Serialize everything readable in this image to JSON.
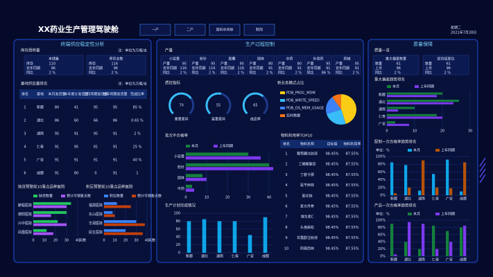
{
  "header": {
    "title": "XX药业生产管理驾驶舱",
    "tabs": [
      "一产",
      "二产",
      "原料中间体",
      "制剂"
    ],
    "weekday": "星期二",
    "date": "2021年7月28日"
  },
  "left": {
    "title": "终端供应稳定性分析",
    "inventory": {
      "label": "库存周转量",
      "note": "注：单位为万瓶/支",
      "blocks": [
        {
          "title": "本储备",
          "rows": [
            [
              "库存",
              "110"
            ],
            [
              "去年同期",
              "96"
            ],
            [
              "同比",
              "2 %"
            ]
          ]
        },
        {
          "title": "库存总数",
          "rows": [
            [
              "库存",
              "116"
            ],
            [
              "去年同期",
              "96"
            ],
            [
              "同比",
              "2 %"
            ]
          ]
        }
      ]
    },
    "ranking": {
      "label": "基地供应量排名",
      "note": "注：单位为万瓶/支",
      "columns": [
        "排名",
        "基地",
        "本月发货量",
        "本年累计发货量",
        "上月同期发货量",
        "去年同期发货量",
        "完成比率"
      ],
      "rows": [
        [
          "1",
          "新都",
          "80",
          "41",
          "95",
          "95",
          "85 %"
        ],
        [
          "2",
          "湖北",
          "86",
          "60",
          "66",
          "86",
          "0.65 %"
        ],
        [
          "3",
          "湖南",
          "95",
          "91",
          "95",
          "91",
          "2 %"
        ],
        [
          "4",
          "仁寿",
          "91",
          "95",
          "81",
          "91",
          "25 %"
        ],
        [
          "5",
          "广安",
          "91",
          "91",
          "91",
          "91",
          "40 %"
        ],
        [
          "6",
          "成都",
          "91",
          "80",
          "0",
          "91",
          "1"
        ]
      ],
      "value_colors": [
        "#ef4444",
        "#ef4444",
        "#22c55e",
        "#ef4444",
        "#22c55e",
        "#e5e7eb"
      ]
    }
  },
  "middle": {
    "title": "生产过程控制",
    "output": {
      "label": "产量",
      "blocks": [
        {
          "title": "小容量",
          "rows": [
            [
              "产量",
              "95"
            ],
            [
              "去年同期",
              "116"
            ],
            [
              "同比",
              "2 %"
            ]
          ]
        },
        {
          "title": "粉针",
          "rows": [
            [
              "产量",
              "95"
            ],
            [
              "去年同期",
              "116"
            ],
            [
              "同比",
              "2 %"
            ]
          ]
        },
        {
          "title": "胶囊",
          "rows": [
            [
              "产量",
              "95"
            ],
            [
              "去年同期",
              "116"
            ],
            [
              "同比",
              "2 %"
            ]
          ]
        },
        {
          "title": "固体",
          "rows": [
            [
              "产量",
              "80"
            ],
            [
              "去年同期",
              "91"
            ],
            [
              "同比",
              "2 %"
            ]
          ]
        },
        {
          "title": "中药",
          "rows": [
            [
              "产量",
              "80"
            ],
            [
              "去年同期",
              "91"
            ],
            [
              "同比",
              "2 %"
            ]
          ]
        },
        {
          "title": "外用药",
          "rows": [
            [
              "产量",
              "95"
            ],
            [
              "去年同期",
              "91"
            ],
            [
              "同比",
              "86 %"
            ]
          ]
        },
        {
          "title": "药械",
          "rows": [
            [
              "产量",
              "95"
            ],
            [
              "去年同期",
              "91"
            ],
            [
              "同比",
              "2 %"
            ]
          ]
        }
      ]
    },
    "top10": {
      "label": "物料利用率TOP10",
      "columns": [
        "排名",
        "物料名称",
        "目标值",
        "物料利用率"
      ],
      "rows": [
        [
          "1",
          "葡萄糖注射液",
          "98.45%",
          "87.55%"
        ],
        [
          "2",
          "三磷酸腺苷",
          "98.45%",
          "87.55%"
        ],
        [
          "3",
          "丁胺卡那",
          "98.45%",
          "87.55%"
        ],
        [
          "4",
          "氨苄西林",
          "98.45%",
          "87.55%"
        ],
        [
          "5",
          "氯化钠",
          "98.45%",
          "87.55%"
        ],
        [
          "6",
          "复方丹参",
          "98.45%",
          "87.55%"
        ],
        [
          "7",
          "维生素C",
          "98.45%",
          "87.55%"
        ],
        [
          "8",
          "头孢曲松",
          "98.45%",
          "87.55%"
        ],
        [
          "9",
          "甘露醇注射液",
          "98.45%",
          "87.55%"
        ],
        [
          "10",
          "阿莫西林",
          "98.45%",
          "87.55%"
        ]
      ]
    }
  },
  "right": {
    "title": "质量保障",
    "overview": {
      "label": "质量一览",
      "blocks": [
        {
          "title": "重大偏差数量",
          "rows": [
            [
              "数量",
              "61"
            ],
            [
              "上月",
              "96"
            ],
            [
              "同比",
              "2 %"
            ]
          ]
        },
        {
          "title": "投诉结案比",
          "rows": [
            [
              "数量",
              "61"
            ],
            [
              "上月",
              "96"
            ],
            [
              "同比",
              "2 %"
            ]
          ]
        }
      ]
    }
  },
  "chart_data": [
    {
      "type": "hbar",
      "title": "缺货预警前10重点品种医院",
      "categories": [
        "鹏程医院",
        "德阳医院",
        "兴中医院",
        "凤凰医院"
      ],
      "series": [
        {
          "name": "缺货数量",
          "color": "#22c55e",
          "values": [
            34,
            30,
            22,
            12
          ]
        },
        {
          "name": "预计可销售天数",
          "color": "#a855f7",
          "values": [
            30,
            16,
            30,
            18
          ]
        }
      ],
      "xlim": [
        0,
        40
      ],
      "xticks": [
        0,
        10,
        20,
        30,
        40
      ],
      "x_label": "天数",
      "grid": true
    },
    {
      "type": "hbar",
      "title": "积压预警前10重点品种医院",
      "categories": [
        "福源医院",
        "东山医院",
        "华润医院",
        "民生医院"
      ],
      "series": [
        {
          "name": "积压数量",
          "color": "#3b82f6",
          "values": [
            12,
            8,
            30,
            20
          ]
        },
        {
          "name": "预计可销售天数",
          "color": "#c2410c",
          "values": [
            25,
            10,
            38,
            36
          ]
        }
      ],
      "xlim": [
        0,
        40
      ],
      "xticks": [
        0,
        10,
        20,
        30,
        40
      ],
      "x_label": "天数",
      "grid": true
    },
    {
      "type": "gauge",
      "title": "质控指标",
      "categories": [
        "重量差异",
        "装量差异",
        "成品率"
      ],
      "values": [
        70,
        55,
        65
      ],
      "ylim": [
        0,
        100
      ],
      "color": "#38bdf8"
    },
    {
      "type": "pie",
      "title": "新业务模式占比",
      "categories": [
        "PDB_PROC_MDM",
        "PDB_WRITE_SPEED",
        "PDB_OS_MEM_USAGE",
        "实时数据"
      ],
      "values": [
        45,
        25,
        20,
        10
      ],
      "colors": [
        "#facc15",
        "#38bdf8",
        "#3b82f6",
        "#f97316"
      ]
    },
    {
      "type": "hbar",
      "title": "批次不合格率",
      "categories": [
        "小容量",
        "粉针",
        "固体",
        "中药"
      ],
      "series": [
        {
          "name": "本月",
          "color": "#15803d",
          "values": [
            30,
            40,
            8,
            3
          ]
        },
        {
          "name": "上年同期",
          "color": "#7c3aed",
          "values": [
            36,
            42,
            10,
            4
          ]
        }
      ],
      "xlim": [
        0,
        40
      ],
      "xticks": [
        0,
        10,
        20,
        30,
        40
      ],
      "grid": true
    },
    {
      "type": "bar",
      "title": "生产计划完成情况",
      "categories": [
        "新都",
        "湖北",
        "湖南",
        "仁寿",
        "广安",
        "成都"
      ],
      "values": [
        80,
        85,
        80,
        80,
        45,
        90
      ],
      "color": "#0ea5e9",
      "ylim": [
        0,
        100
      ],
      "yticks": [
        0,
        20,
        40,
        60,
        80,
        100
      ],
      "grid": true
    },
    {
      "type": "hbar",
      "title": "重大偏差趋势排名",
      "categories": [
        "新都",
        "湖北",
        "湖南",
        "仁寿",
        "广安"
      ],
      "series": [
        {
          "name": "本月",
          "color": "#15803d",
          "values": [
            20,
            26,
            10,
            18,
            3
          ]
        },
        {
          "name": "上年同期",
          "color": "#7c3aed",
          "values": [
            18,
            24,
            4,
            20,
            8
          ]
        }
      ],
      "xlim": [
        0,
        30
      ],
      "xticks": [
        0,
        10,
        20,
        30
      ],
      "grid": true
    },
    {
      "type": "bar",
      "title": "配制一次合格率趋势排名",
      "unit": "单位：%",
      "categories": [
        "新都",
        "湖北",
        "湖南",
        "仁寿",
        "广安",
        "成都"
      ],
      "series": [
        {
          "name": "本月",
          "color": "#0ea5e9",
          "values": [
            85,
            78,
            12,
            55,
            92,
            10
          ]
        },
        {
          "name": "上年同期",
          "color": "#b45309",
          "values": [
            5,
            20,
            90,
            20,
            18,
            85
          ]
        }
      ],
      "ylim": [
        0,
        100
      ],
      "yticks": [
        {
          "value": 0,
          "label": "0%"
        },
        {
          "value": 20,
          "label": "20%"
        },
        {
          "value": 40,
          "label": "40%"
        },
        {
          "value": 60,
          "label": "60%"
        },
        {
          "value": 80,
          "label": "80%"
        },
        {
          "value": 100,
          "label": "100%"
        }
      ],
      "grid": true
    },
    {
      "type": "bar",
      "title": "产品一次合格率趋势排名",
      "unit": "单位：%",
      "categories": [
        "新都",
        "湖北",
        "湖南",
        "仁寿",
        "广安",
        "成都"
      ],
      "series": [
        {
          "name": "本月",
          "color": "#15803d",
          "values": [
            90,
            40,
            20,
            85,
            70,
            80
          ]
        },
        {
          "name": "上年同期",
          "color": "#7c3aed",
          "values": [
            5,
            95,
            90,
            20,
            40,
            85
          ]
        }
      ],
      "ylim": [
        0,
        100
      ],
      "yticks": [
        {
          "value": 0,
          "label": "0%"
        },
        {
          "value": 20,
          "label": "20%"
        },
        {
          "value": 40,
          "label": "40%"
        },
        {
          "value": 60,
          "label": "60%"
        },
        {
          "value": 80,
          "label": "80%"
        },
        {
          "value": 100,
          "label": "100%"
        }
      ],
      "grid": true
    }
  ]
}
